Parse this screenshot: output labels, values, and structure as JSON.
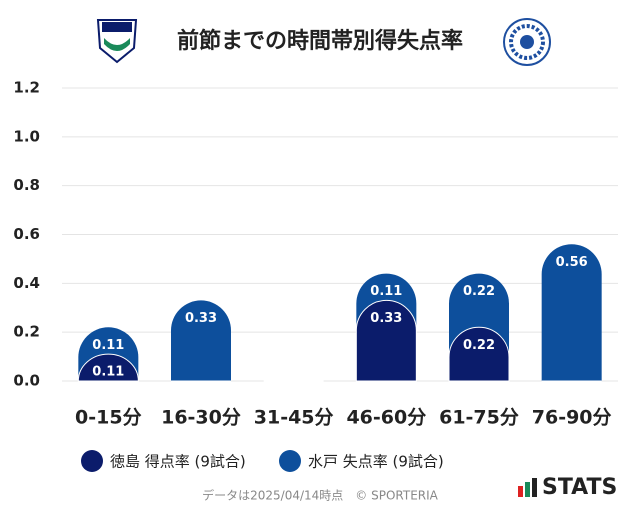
{
  "chart_data": {
    "type": "stacked_bar",
    "title": "前節までの時間帯別得失点率",
    "categories": [
      "0-15分",
      "16-30分",
      "31-45分",
      "46-60分",
      "61-75分",
      "76-90分"
    ],
    "series": [
      {
        "name": "徳島 得点率 (9試合)",
        "color": "#0b1c6b",
        "values": [
          0.11,
          0,
          0,
          0.33,
          0.22,
          0
        ]
      },
      {
        "name": "水戸 失点率 (9試合)",
        "color": "#0d4f9c",
        "values": [
          0.11,
          0.33,
          0,
          0.11,
          0.22,
          0.56
        ]
      }
    ],
    "ylim": [
      0,
      1.2
    ],
    "yticks": [
      {
        "value": 0,
        "label": "0.0"
      },
      0.2,
      0.4,
      0.6,
      0.8,
      {
        "value": 1,
        "label": "1.0"
      },
      1.2
    ],
    "grid": true,
    "footer": "データは2025/04/14時点　© SPORTERIA",
    "brand": "STATS"
  }
}
